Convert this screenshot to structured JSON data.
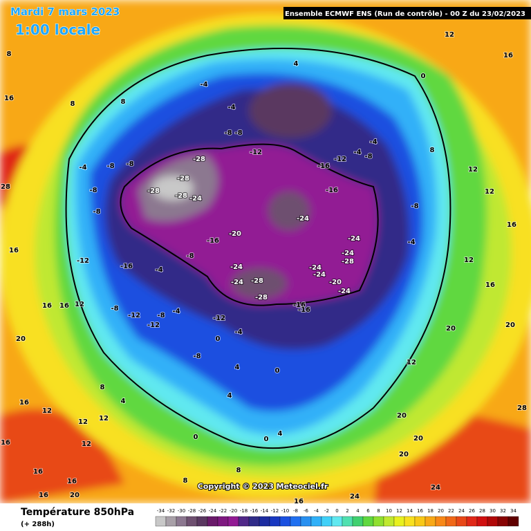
{
  "header": {
    "date": "Mardi 7 mars 2023",
    "time": "1:00 locale",
    "model": "Ensemble ECMWF ENS  (Run de contrôle)  -  00 Z du 23/02/2023"
  },
  "footer": {
    "field": "Température 850hPa",
    "lead": "(+ 288h)",
    "copyright": "Copyright © 2023 Meteociel.fr"
  },
  "colorbar": {
    "ticks": [
      -34,
      -32,
      -30,
      -28,
      -26,
      -24,
      -22,
      -20,
      -18,
      -16,
      -14,
      -12,
      -10,
      -8,
      -6,
      -4,
      -2,
      0,
      2,
      4,
      6,
      8,
      10,
      12,
      14,
      16,
      18,
      20,
      22,
      24,
      26,
      28,
      30,
      32,
      34
    ],
    "colors": [
      "#c8c8c8",
      "#a8a0a8",
      "#8c7890",
      "#6e5070",
      "#5a3860",
      "#6a1a6a",
      "#7e1880",
      "#921a94",
      "#502888",
      "#302c88",
      "#1c2ca0",
      "#1838c0",
      "#1a50e0",
      "#2070f0",
      "#2890f0",
      "#30b0f8",
      "#40d0f8",
      "#60e8f0",
      "#50e0b0",
      "#40d070",
      "#60d840",
      "#90e030",
      "#c0e830",
      "#e8f020",
      "#f8e020",
      "#f8c818",
      "#f8a818",
      "#f88818",
      "#f06818",
      "#e84818",
      "#e02818",
      "#d01010",
      "#b00808",
      "#880404",
      "#600000"
    ]
  },
  "map": {
    "labels": [
      -4,
      -4,
      -8,
      -8,
      -12,
      -28,
      -28,
      -28,
      -28,
      -24,
      -8,
      -8,
      -4,
      -8,
      -8,
      -12,
      -16,
      -4,
      -8,
      -16,
      -20,
      -24,
      -24,
      -28,
      -28,
      -8,
      -12,
      -12,
      -8,
      -4,
      -12,
      0,
      -4,
      -8,
      4,
      -16,
      -12,
      -16,
      -4,
      -8,
      -4,
      -24,
      -24,
      -24,
      -28,
      -24,
      -24,
      -20,
      -24,
      -16,
      -16,
      -4,
      -8,
      0,
      8,
      12,
      16,
      12,
      12,
      12,
      16,
      20,
      20,
      12,
      20,
      20,
      20,
      24,
      24,
      16,
      8,
      8,
      4,
      0,
      0,
      4,
      0,
      16,
      8,
      8,
      20,
      16,
      28,
      16,
      16,
      12,
      12,
      12,
      12,
      16,
      16,
      16,
      20,
      16,
      12,
      4,
      8,
      16,
      8,
      16,
      28,
      24,
      4,
      12
    ]
  }
}
